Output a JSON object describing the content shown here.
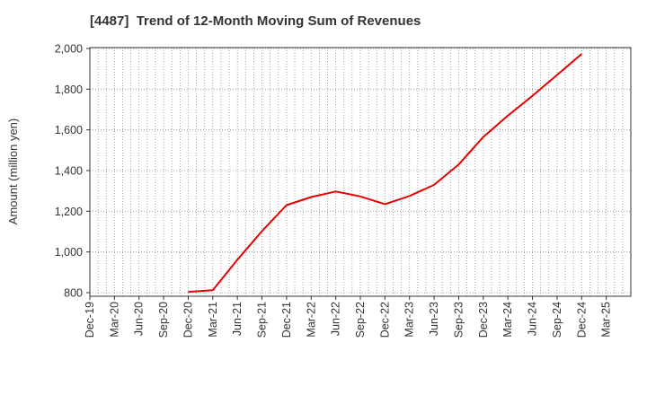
{
  "chart_data": {
    "type": "line",
    "title": "[4487]  Trend of 12-Month Moving Sum of Revenues",
    "xlabel": "",
    "ylabel": "Amount (million yen)",
    "categories": [
      "Dec-19",
      "Mar-20",
      "Jun-20",
      "Sep-20",
      "Dec-20",
      "Mar-21",
      "Jun-21",
      "Sep-21",
      "Dec-21",
      "Mar-22",
      "Jun-22",
      "Sep-22",
      "Dec-22",
      "Mar-23",
      "Jun-23",
      "Sep-23",
      "Dec-23",
      "Mar-24",
      "Jun-24",
      "Sep-24",
      "Dec-24",
      "Mar-25"
    ],
    "yticks": [
      "800",
      "1,000",
      "1,200",
      "1,400",
      "1,600",
      "1,800",
      "2,000"
    ],
    "ylim": [
      780,
      2000
    ],
    "grid": true,
    "line_color": "#e60000",
    "series": [
      {
        "values": [
          null,
          null,
          null,
          null,
          804,
          812,
          962,
          1102,
          1230,
          1270,
          1297,
          1273,
          1235,
          1275,
          1330,
          1430,
          1565,
          1670,
          1767,
          1870,
          1973,
          null
        ]
      }
    ]
  }
}
